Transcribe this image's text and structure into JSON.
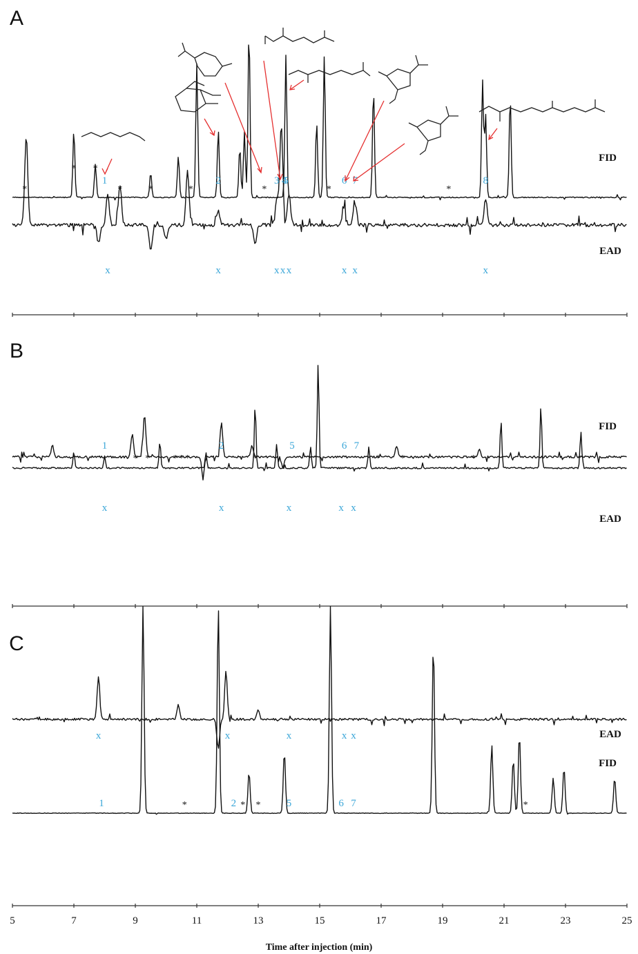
{
  "chart_data": [
    {
      "type": "line",
      "panel": "A",
      "xlim": [
        5,
        25
      ],
      "traces": [
        "FID",
        "EAD"
      ],
      "peak_labels": [
        {
          "label": "1",
          "x": 8.0
        },
        {
          "label": "2",
          "x": 11.7
        },
        {
          "label": "3",
          "x": 13.6
        },
        {
          "label": "4",
          "x": 13.85
        },
        {
          "label": "5",
          "x": 13.9
        },
        {
          "label": "6",
          "x": 15.8
        },
        {
          "label": "7",
          "x": 16.15
        },
        {
          "label": "8",
          "x": 20.4
        }
      ],
      "ead_markers": [
        {
          "label": "x",
          "x": 8.1
        },
        {
          "label": "x",
          "x": 11.7
        },
        {
          "label": "x",
          "x": 13.6
        },
        {
          "label": "x",
          "x": 13.8
        },
        {
          "label": "x",
          "x": 14.0
        },
        {
          "label": "x",
          "x": 15.8
        },
        {
          "label": "x",
          "x": 16.15
        },
        {
          "label": "x",
          "x": 20.4
        }
      ],
      "asterisks": [
        5.4,
        7.0,
        7.7,
        8.5,
        9.5,
        10.8,
        13.2,
        15.3,
        19.2
      ],
      "fid_peaks": [
        [
          7.0,
          0.4
        ],
        [
          7.7,
          0.2
        ],
        [
          9.5,
          0.15
        ],
        [
          10.4,
          0.25
        ],
        [
          11.0,
          0.8
        ],
        [
          11.7,
          0.4
        ],
        [
          12.4,
          0.3
        ],
        [
          12.55,
          0.4
        ],
        [
          12.7,
          1.0
        ],
        [
          13.9,
          0.85
        ],
        [
          14.9,
          0.45
        ],
        [
          15.15,
          0.85
        ],
        [
          16.75,
          0.65
        ],
        [
          20.3,
          0.7
        ],
        [
          20.4,
          0.5
        ],
        [
          21.2,
          0.6
        ]
      ],
      "ead_peaks": [
        [
          5.45,
          -1.0
        ],
        [
          7.8,
          0.2
        ],
        [
          8.1,
          -0.35
        ],
        [
          8.5,
          -0.45
        ],
        [
          9.5,
          0.3
        ],
        [
          10.0,
          0.15
        ],
        [
          10.7,
          -0.6
        ],
        [
          11.7,
          -0.15
        ],
        [
          12.9,
          0.2
        ],
        [
          13.6,
          -0.3
        ],
        [
          13.75,
          -1.1
        ],
        [
          14.0,
          -0.35
        ],
        [
          15.8,
          -0.3
        ],
        [
          16.15,
          -0.3
        ],
        [
          20.4,
          -0.3
        ]
      ]
    },
    {
      "type": "line",
      "panel": "B",
      "xlim": [
        5,
        25
      ],
      "traces": [
        "FID",
        "EAD"
      ],
      "peak_labels": [
        {
          "label": "1",
          "x": 8.0
        },
        {
          "label": "2",
          "x": 11.8
        },
        {
          "label": "5",
          "x": 14.1
        },
        {
          "label": "6",
          "x": 15.8
        },
        {
          "label": "7",
          "x": 16.2
        }
      ],
      "ead_markers": [
        {
          "label": "x",
          "x": 8.0
        },
        {
          "label": "x",
          "x": 11.8
        },
        {
          "label": "x",
          "x": 14.0
        },
        {
          "label": "x",
          "x": 15.7
        },
        {
          "label": "x",
          "x": 16.1
        }
      ],
      "asterisks": [
        9.0,
        9.4,
        10.3,
        10.5,
        10.7,
        12.9,
        16.9,
        17.7,
        20.0
      ],
      "fid_peaks": [
        [
          7.0,
          0.15
        ],
        [
          8.0,
          0.12
        ],
        [
          9.8,
          0.25
        ],
        [
          11.3,
          0.15
        ],
        [
          12.9,
          0.6
        ],
        [
          13.6,
          0.22
        ],
        [
          14.7,
          0.2
        ],
        [
          14.95,
          1.0
        ],
        [
          16.6,
          0.2
        ],
        [
          20.9,
          0.45
        ],
        [
          22.2,
          0.6
        ],
        [
          23.5,
          0.35
        ]
      ],
      "ead_peaks": [
        [
          6.3,
          -0.15
        ],
        [
          8.9,
          -0.3
        ],
        [
          9.3,
          -0.55
        ],
        [
          11.2,
          0.25
        ],
        [
          11.8,
          -0.45
        ],
        [
          12.8,
          -0.15
        ],
        [
          13.8,
          0.15
        ],
        [
          17.5,
          -0.15
        ],
        [
          20.2,
          -0.1
        ]
      ]
    },
    {
      "type": "line",
      "panel": "C",
      "xlim": [
        5,
        25
      ],
      "xticks": [
        5,
        7,
        9,
        11,
        13,
        15,
        17,
        19,
        21,
        23,
        25
      ],
      "xlabel": "Time after injection (min)",
      "traces": [
        "FID",
        "EAD"
      ],
      "peak_labels": [
        {
          "label": "1",
          "x": 7.9
        },
        {
          "label": "2",
          "x": 12.2
        },
        {
          "label": "5",
          "x": 14.0
        },
        {
          "label": "6",
          "x": 15.7
        },
        {
          "label": "7",
          "x": 16.1
        }
      ],
      "ead_markers": [
        {
          "label": "x",
          "x": 7.8
        },
        {
          "label": "x",
          "x": 12.0
        },
        {
          "label": "x",
          "x": 14.0
        },
        {
          "label": "x",
          "x": 15.8
        },
        {
          "label": "x",
          "x": 16.1
        }
      ],
      "asterisks": [
        10.6,
        12.5,
        13.0,
        21.7
      ],
      "fid_peaks": [
        [
          9.25,
          1.0
        ],
        [
          11.7,
          1.0
        ],
        [
          12.7,
          0.2
        ],
        [
          13.85,
          0.3
        ],
        [
          15.35,
          1.0
        ],
        [
          18.7,
          0.82
        ],
        [
          20.6,
          0.33
        ],
        [
          21.3,
          0.26
        ],
        [
          21.5,
          0.38
        ],
        [
          22.6,
          0.17
        ],
        [
          22.95,
          0.22
        ],
        [
          24.6,
          0.17
        ]
      ],
      "ead_peaks": [
        [
          7.8,
          -0.9
        ],
        [
          10.4,
          -0.3
        ],
        [
          11.7,
          0.6
        ],
        [
          11.95,
          -1.0
        ],
        [
          13.0,
          -0.2
        ]
      ]
    }
  ]
}
